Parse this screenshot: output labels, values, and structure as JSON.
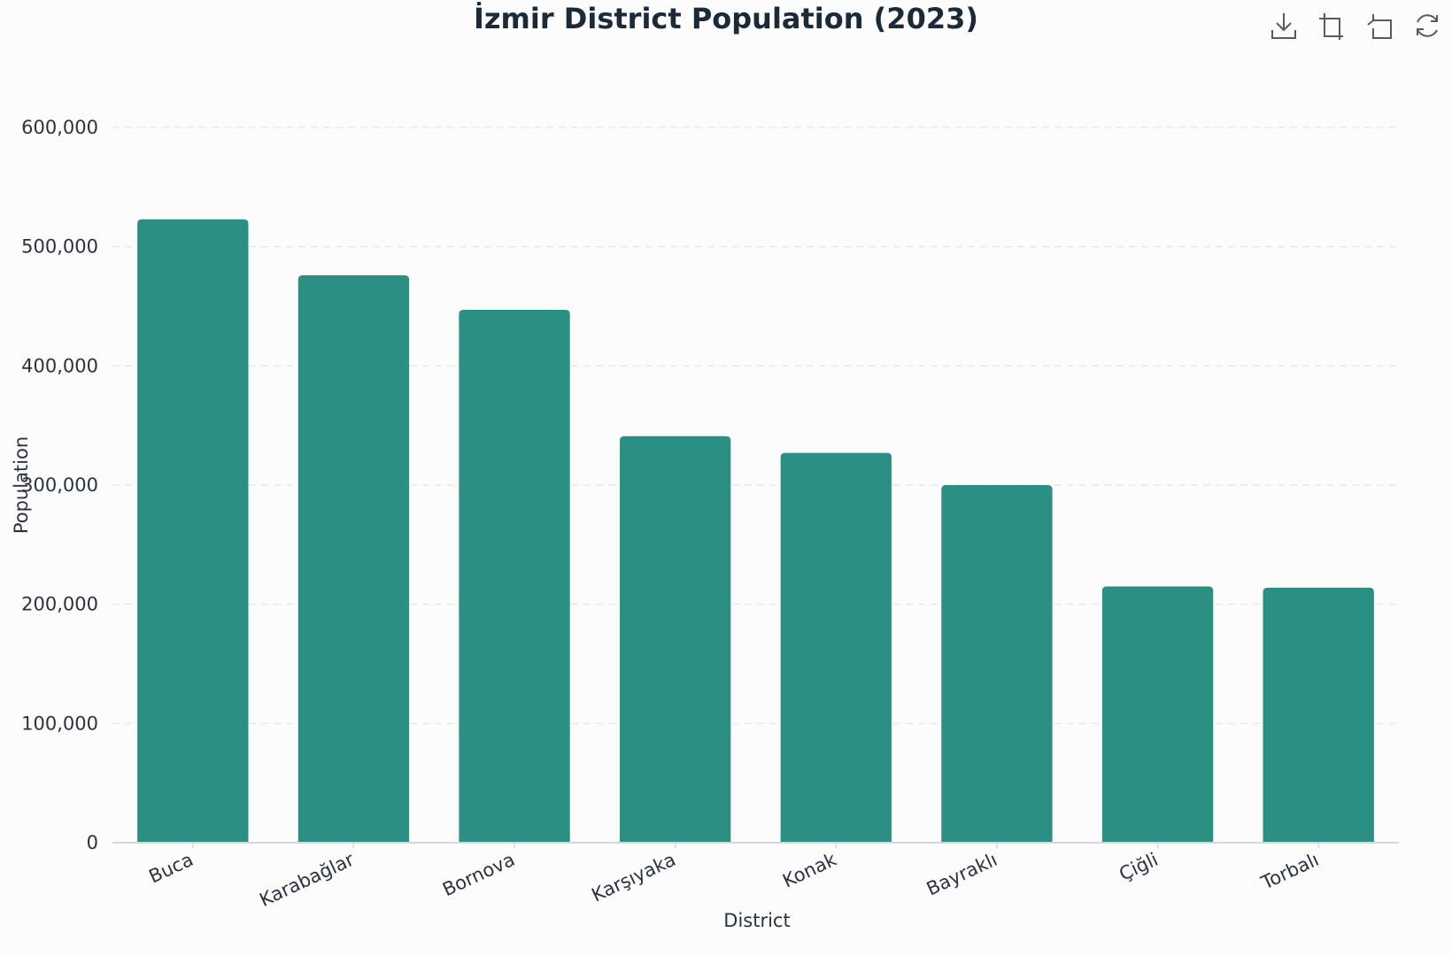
{
  "chart_data": {
    "type": "bar",
    "title": "İzmir District Population (2023)",
    "xlabel": "District",
    "ylabel": "Population",
    "categories": [
      "Buca",
      "Karabağlar",
      "Bornova",
      "Karşıyaka",
      "Konak",
      "Bayraklı",
      "Çiğli",
      "Torbalı"
    ],
    "values": [
      523000,
      476000,
      447000,
      341000,
      327000,
      300000,
      215000,
      214000
    ],
    "ylim": [
      0,
      600000
    ],
    "yticks": [
      0,
      100000,
      200000,
      300000,
      400000,
      500000,
      600000
    ],
    "ytick_labels": [
      "0",
      "100,000",
      "200,000",
      "300,000",
      "400,000",
      "500,000",
      "600,000"
    ],
    "grid": true,
    "bar_color": "#2b8f84",
    "grid_color": "#e6e8ec",
    "axis_color": "#d4d8de"
  },
  "toolbox": {
    "icons": [
      "download-icon",
      "crop-icon",
      "undo-icon",
      "refresh-icon"
    ]
  }
}
